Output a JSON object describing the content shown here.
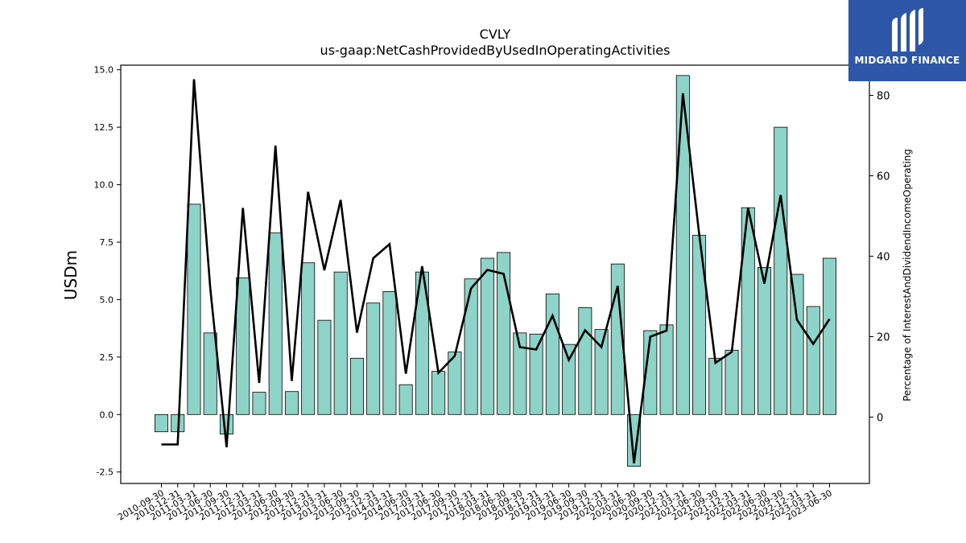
{
  "logo": {
    "text": "MIDGARD FINANCE",
    "color": "#2d56a8"
  },
  "chart_data": {
    "type": "bar",
    "title": "CVLY",
    "subtitle": "us-gaap:NetCashProvidedByUsedInOperatingActivities",
    "ylabel": "USDm",
    "y2label": "Percentage of InterestAndDividendIncomeOperating",
    "ylim": [
      -3.0,
      15.2
    ],
    "y2lim": [
      -16.5,
      87.5
    ],
    "yticks": [
      -2.5,
      0.0,
      2.5,
      5.0,
      7.5,
      10.0,
      12.5,
      15.0
    ],
    "y2ticks": [
      0,
      20,
      40,
      60,
      80
    ],
    "bar_color": "#8dd3c7",
    "line_color": "#000000",
    "categories": [
      "2010-09-30",
      "2010-12-31",
      "2011-03-31",
      "2011-06-30",
      "2011-09-30",
      "2011-12-31",
      "2012-03-31",
      "2012-06-30",
      "2012-09-30",
      "2012-12-31",
      "2013-03-31",
      "2013-06-30",
      "2013-09-30",
      "2013-12-31",
      "2014-03-31",
      "2014-06-30",
      "2017-03-31",
      "2017-06-30",
      "2017-09-30",
      "2017-12-31",
      "2018-03-31",
      "2018-06-30",
      "2018-09-30",
      "2018-12-31",
      "2019-03-31",
      "2019-06-30",
      "2019-09-30",
      "2019-12-31",
      "2020-03-31",
      "2020-06-30",
      "2020-09-30",
      "2020-12-31",
      "2021-03-31",
      "2021-06-30",
      "2021-09-30",
      "2021-12-31",
      "2022-03-31",
      "2022-06-30",
      "2022-09-30",
      "2022-12-31",
      "2023-03-31",
      "2023-06-30"
    ],
    "series": [
      {
        "type": "bar",
        "axis": "left",
        "values": [
          -0.75,
          -0.75,
          9.15,
          3.55,
          -0.85,
          5.95,
          0.97,
          7.9,
          1.0,
          6.6,
          4.1,
          6.2,
          2.45,
          4.85,
          5.35,
          1.3,
          6.2,
          1.88,
          2.72,
          5.9,
          6.8,
          7.05,
          3.55,
          3.5,
          5.25,
          3.05,
          4.65,
          3.7,
          6.55,
          -2.25,
          3.65,
          3.9,
          14.75,
          7.8,
          2.45,
          2.8,
          9.0,
          6.4,
          12.5,
          6.1,
          4.7,
          6.8
        ]
      },
      {
        "type": "line",
        "axis": "right",
        "values": [
          -6.8,
          -6.8,
          84,
          32,
          -7.5,
          52,
          8.5,
          67.5,
          9,
          56,
          36.5,
          54,
          21,
          39.5,
          43,
          10.8,
          37.5,
          11,
          15.2,
          32,
          36.6,
          35.6,
          17.4,
          16.8,
          25.2,
          14.2,
          21.6,
          17.4,
          32.6,
          -11.5,
          20,
          21.5,
          80.5,
          45.5,
          13.5,
          16.2,
          52,
          33.2,
          55.2,
          24.2,
          18.2,
          24.4
        ]
      }
    ]
  }
}
